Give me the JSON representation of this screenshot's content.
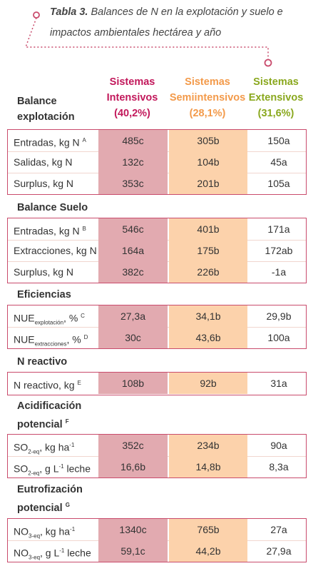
{
  "title": {
    "bold": "Tabla 3.",
    "line1": " Balances de N en la explotación y suelo e",
    "line2": "impactos ambientales hectárea y año"
  },
  "columns": {
    "intensive": {
      "line1": "Sistemas",
      "line2": "Intensivos",
      "line3": "(40,2%)",
      "color": "#c2185b"
    },
    "semi": {
      "line1": "Sistemas",
      "line2": "Semiintensivos",
      "line3": "(28,1%)",
      "color": "#f39a4a"
    },
    "extensive": {
      "line1": "Sistemas",
      "line2": "Extensivos",
      "line3": "(31,6%)",
      "color": "#8aa81e"
    }
  },
  "sections": {
    "explotacion": {
      "title_line1": "Balance",
      "title_line2": "explotación",
      "rows": [
        {
          "label": "Entradas, kg N",
          "sup": "A",
          "int": "485c",
          "semi": "305b",
          "ext": "150a"
        },
        {
          "label": "Salidas, kg N",
          "sup": "",
          "int": "132c",
          "semi": "104b",
          "ext": "45a"
        },
        {
          "label": "Surplus, kg N",
          "sup": "",
          "int": "353c",
          "semi": "201b",
          "ext": "105a"
        }
      ]
    },
    "suelo": {
      "title": "Balance Suelo",
      "rows": [
        {
          "label": "Entradas, kg N",
          "sup": "B",
          "int": "546c",
          "semi": "401b",
          "ext": "171a"
        },
        {
          "label": "Extracciones, kg N",
          "sup": "",
          "int": "164a",
          "semi": "175b",
          "ext": "172ab"
        },
        {
          "label": "Surplus, kg N",
          "sup": "",
          "int": "382c",
          "semi": "226b",
          "ext": "-1a"
        }
      ]
    },
    "eficiencias": {
      "title": "Eficiencias",
      "rows": [
        {
          "label": "NUE",
          "sub": "explotación",
          "tail": ", %",
          "sup": "C",
          "int": "27,3a",
          "semi": "34,1b",
          "ext": "29,9b"
        },
        {
          "label": "NUE",
          "sub": "extracciones",
          "tail": ", %",
          "sup": "D",
          "int": "30c",
          "semi": "43,6b",
          "ext": "100a"
        }
      ]
    },
    "reactivo": {
      "title": "N reactivo",
      "rows": [
        {
          "label": "N reactivo, kg",
          "sup": "E",
          "int": "108b",
          "semi": "92b",
          "ext": "31a"
        }
      ]
    },
    "acidificacion": {
      "title_line1": "Acidificación",
      "title_line2": "potencial",
      "title_sup": "F",
      "rows": [
        {
          "label": "SO",
          "sub": "2-eq",
          "tail": ", kg ha",
          "sup": "-1",
          "tail2": "",
          "int": "352c",
          "semi": "234b",
          "ext": "90a"
        },
        {
          "label": "SO",
          "sub": "2-eq",
          "tail": ", g L",
          "sup": "-1",
          "tail2": " leche",
          "int": "16,6b",
          "semi": "14,8b",
          "ext": "8,3a"
        }
      ]
    },
    "eutrofizacion": {
      "title_line1": "Eutrofización",
      "title_line2": "potencial",
      "title_sup": "G",
      "rows": [
        {
          "label": "NO",
          "sub": "3-eq",
          "tail": ", kg ha",
          "sup": "-1",
          "tail2": "",
          "int": "1340c",
          "semi": "765b",
          "ext": "27a"
        },
        {
          "label": "NO",
          "sub": "3-eq",
          "tail": ", g L",
          "sup": "-1",
          "tail2": " leche",
          "int": "59,1c",
          "semi": "44,2b",
          "ext": "27,9a"
        }
      ]
    }
  }
}
